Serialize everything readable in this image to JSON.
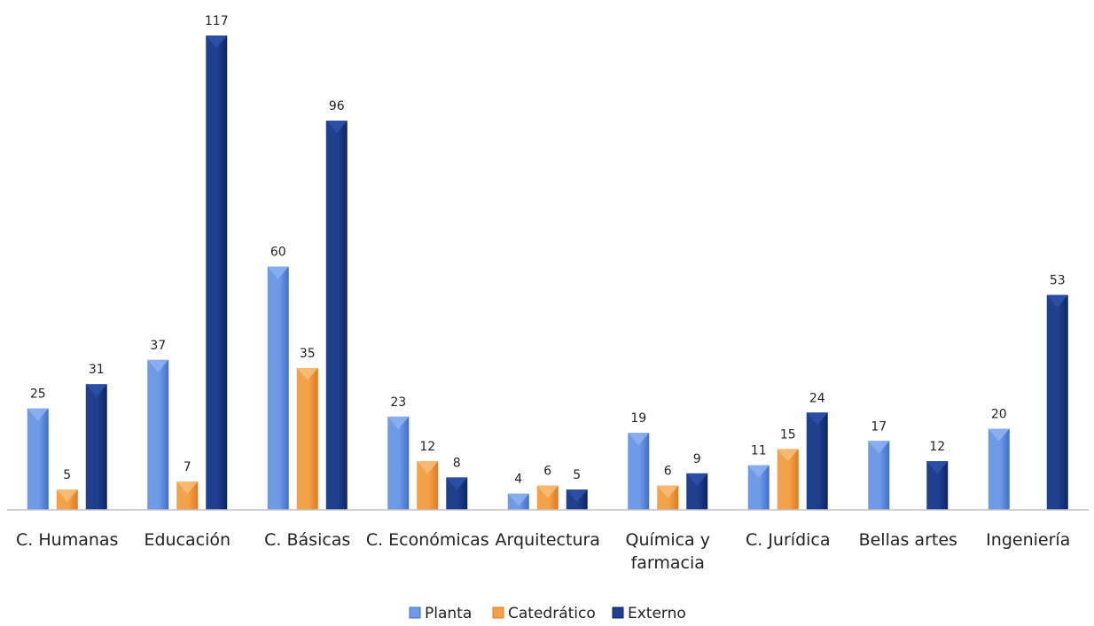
{
  "chart_data": {
    "type": "bar",
    "categories": [
      [
        "C. Humanas"
      ],
      [
        "Educación"
      ],
      [
        "C. Básicas"
      ],
      [
        "C. Económicas"
      ],
      [
        "Arquitectura"
      ],
      [
        "Química y",
        "farmacia"
      ],
      [
        "C. Jurídica"
      ],
      [
        "Bellas artes"
      ],
      [
        "Ingeniería"
      ]
    ],
    "series": [
      {
        "name": "Planta",
        "values": [
          25,
          37,
          60,
          23,
          4,
          19,
          11,
          17,
          20
        ]
      },
      {
        "name": "Catedrático",
        "values": [
          5,
          7,
          35,
          12,
          6,
          6,
          15,
          null,
          null
        ]
      },
      {
        "name": "Externo",
        "values": [
          31,
          117,
          96,
          8,
          5,
          9,
          24,
          12,
          53
        ]
      }
    ],
    "colors": {
      "Planta": {
        "light": "#6f9ae6",
        "dark": "#3d6fcc",
        "cap": "#8db2f0"
      },
      "Catedrático": {
        "light": "#f4a24a",
        "dark": "#e07a1f",
        "cap": "#f8bd78"
      },
      "Externo": {
        "light": "#1f3f8f",
        "dark": "#0d2566",
        "cap": "#2e52a8"
      }
    },
    "title": "",
    "xlabel": "",
    "ylabel": "",
    "ylim": [
      0,
      117
    ],
    "grid": false,
    "legend": "bottom"
  }
}
